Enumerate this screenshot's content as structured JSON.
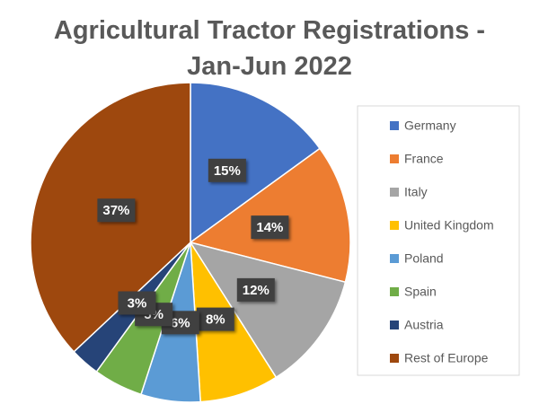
{
  "chart_data": {
    "type": "pie",
    "title": "Agricultural Tractor Registrations - Jan-Jun 2022",
    "categories": [
      "Germany",
      "France",
      "Italy",
      "United Kingdom",
      "Poland",
      "Spain",
      "Austria",
      "Rest of Europe"
    ],
    "values": [
      15,
      14,
      12,
      8,
      6,
      5,
      3,
      37
    ],
    "value_labels": [
      "15%",
      "14%",
      "12%",
      "8%",
      "6%",
      "5%",
      "3%",
      "37%"
    ],
    "colors": [
      "#4472c4",
      "#ed7d31",
      "#a5a5a5",
      "#ffc000",
      "#5b9bd5",
      "#70ad47",
      "#264478",
      "#9e480e"
    ],
    "legend": "right"
  }
}
